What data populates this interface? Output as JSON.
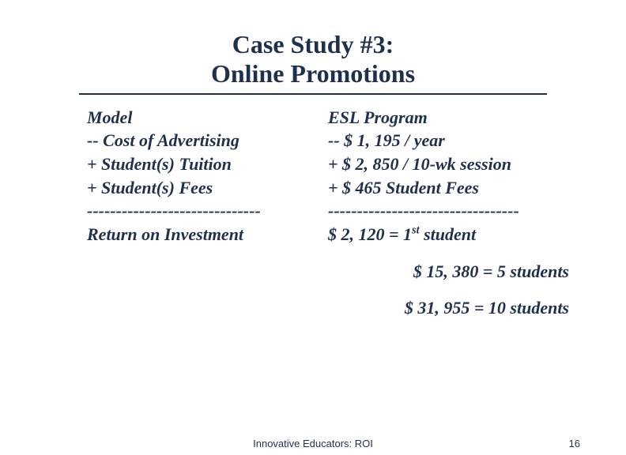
{
  "title": {
    "line1": "Case Study #3:",
    "line2": "Online Promotions"
  },
  "colors": {
    "text": "#1f304f",
    "background": "#ffffff",
    "rule": "#1f304f"
  },
  "left": {
    "h": "Model",
    "r1": "-- Cost of Advertising",
    "r2": "+ Student(s) Tuition",
    "r3": "+ Student(s) Fees",
    "r4": "------------------------------",
    "r5": "Return on Investment"
  },
  "right": {
    "h": "ESL Program",
    "r1": "-- $ 1, 195 / year",
    "r2": "+ $ 2, 850 / 10-wk session",
    "r3": "+ $    465 Student Fees",
    "r4": "---------------------------------",
    "r5_pre": "   $ 2, 120 = 1",
    "r5_sup": "st",
    "r5_post": " student"
  },
  "extras": {
    "e1": "$ 15, 380 = 5 students",
    "e2": "$ 31, 955 = 10 students"
  },
  "footer": {
    "center": "Innovative Educators: ROI",
    "page": "16"
  }
}
